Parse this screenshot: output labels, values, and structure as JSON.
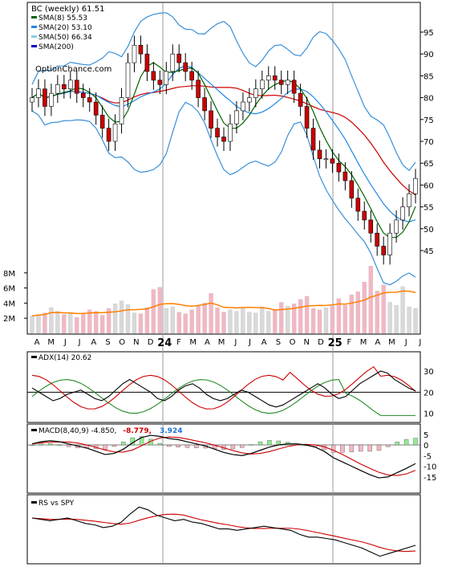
{
  "title": "BC (weekly) 61.51",
  "watermark": "OptionChance.com",
  "legend": [
    {
      "label": "SMA(8) 55.53",
      "color": "#006400"
    },
    {
      "label": "SMA(20) 53.10",
      "color": "#1e88e5"
    },
    {
      "label": "SMA(50) 66.34",
      "color": "#87ceeb"
    },
    {
      "label": "SMA(200)",
      "color": "#0000cd"
    }
  ],
  "price_axis": [
    "95",
    "90",
    "85",
    "80",
    "75",
    "70",
    "65",
    "60",
    "55",
    "50",
    "45"
  ],
  "volume_axis": [
    "8M",
    "6M",
    "4M",
    "2M"
  ],
  "x_labels": [
    "A",
    "M",
    "J",
    "J",
    "A",
    "S",
    "O",
    "N",
    "D",
    "24",
    "F",
    "M",
    "A",
    "M",
    "J",
    "J",
    "A",
    "S",
    "O",
    "N",
    "D",
    "25",
    "F",
    "M",
    "A",
    "M",
    "J",
    "J"
  ],
  "adx": {
    "label": "ADX(14) 20.62",
    "axis": [
      "30",
      "20",
      "10"
    ]
  },
  "macd": {
    "label": "MACD(8,40,9) -4.850,",
    "value_red": "-8.779,",
    "value_blue": "3.924",
    "axis": [
      "5",
      "0",
      "-5",
      "-10",
      "-15"
    ]
  },
  "rs": {
    "label": "RS vs SPY"
  },
  "colors": {
    "up": "#ffffff",
    "down": "#cc0000",
    "sma8": "#006400",
    "sma20": "#1e88e5",
    "sma50": "#87ceeb",
    "red_ma": "#cc0000",
    "bb": "#3a8fd8",
    "psar": "#ffff00",
    "vol_up": "#d9d9d9",
    "vol_down": "#f4b6c2",
    "vol_ma": "#ff7f00",
    "adx": "#000000",
    "pdi": "#228b22",
    "mdi": "#cc0000",
    "macd": "#000000",
    "signal": "#cc0000",
    "hist_pos": "#90ee90",
    "hist_neg": "#f4b6c2"
  },
  "chart_data": {
    "type": "candlestick",
    "ticker": "BC",
    "interval": "weekly",
    "x_range": [
      "2023-04",
      "2025-07"
    ],
    "y_range": [
      40,
      100
    ],
    "last_close": 61.51,
    "sma8": 55.53,
    "sma20": 53.1,
    "sma50": 66.34,
    "close": [
      80,
      82,
      78,
      81,
      83,
      82,
      84,
      81,
      80,
      79,
      76,
      73,
      70,
      74,
      80,
      88,
      92,
      90,
      86,
      84,
      83,
      86,
      90,
      88,
      86,
      84,
      80,
      77,
      73,
      71,
      70,
      74,
      77,
      79,
      80,
      82,
      84,
      85,
      84,
      83,
      84,
      81,
      78,
      73,
      68,
      66,
      66,
      65,
      63,
      61,
      57,
      54,
      52,
      49,
      46,
      44,
      49,
      52,
      55,
      58,
      61.51
    ],
    "volume_millions": [
      2.3,
      2.5,
      2.7,
      3.4,
      2.9,
      2.5,
      2.6,
      2.1,
      2.7,
      3.1,
      2.9,
      2.4,
      3.3,
      3.9,
      4.3,
      3.8,
      2.7,
      2.6,
      3.4,
      5.8,
      6.1,
      3.3,
      3.5,
      2.8,
      2.6,
      3.1,
      3.6,
      4.0,
      5.3,
      3.4,
      2.8,
      3.1,
      2.9,
      3.4,
      2.8,
      2.7,
      3.5,
      2.9,
      3.2,
      4.1,
      3.6,
      3.9,
      4.5,
      4.9,
      3.3,
      3.1,
      3.4,
      3.6,
      4.6,
      3.7,
      5.1,
      5.5,
      6.8,
      8.9,
      5.6,
      6.4,
      4.1,
      3.7,
      6.2,
      3.5,
      3.3
    ],
    "adx": [
      22,
      20,
      18,
      16,
      17,
      19,
      20,
      21,
      19,
      17,
      16,
      18,
      21,
      24,
      26,
      24,
      22,
      20,
      17,
      16,
      18,
      21,
      23,
      24,
      22,
      19,
      17,
      16,
      17,
      19,
      21,
      20,
      18,
      16,
      14,
      13,
      14,
      16,
      18,
      20,
      22,
      24,
      22,
      19,
      17,
      18,
      21,
      24,
      26,
      28,
      30,
      29,
      26,
      24,
      22,
      20.62
    ],
    "macd": [
      0.5,
      1.5,
      2,
      1.5,
      0.5,
      -0.5,
      -1.5,
      -3,
      -4.5,
      -4,
      -2,
      1,
      3.5,
      4.5,
      4,
      3,
      2.5,
      1.5,
      0.5,
      -0.5,
      -2,
      -3.5,
      -4.5,
      -5,
      -4,
      -2.5,
      -1,
      0,
      0.5,
      0.5,
      0,
      -1,
      -3,
      -6,
      -8,
      -10,
      -12,
      -14,
      -15.5,
      -15,
      -13,
      -11,
      -8.779
    ],
    "rs": [
      100,
      99,
      98,
      99,
      100,
      98,
      96,
      95,
      93,
      94,
      97,
      103,
      108,
      106,
      102,
      100,
      98,
      99,
      97,
      96,
      94,
      92,
      92,
      91,
      92,
      93,
      94,
      93,
      92,
      91,
      88,
      86,
      86,
      85,
      84,
      82,
      80,
      78,
      75,
      72,
      74,
      76,
      78,
      80
    ]
  }
}
